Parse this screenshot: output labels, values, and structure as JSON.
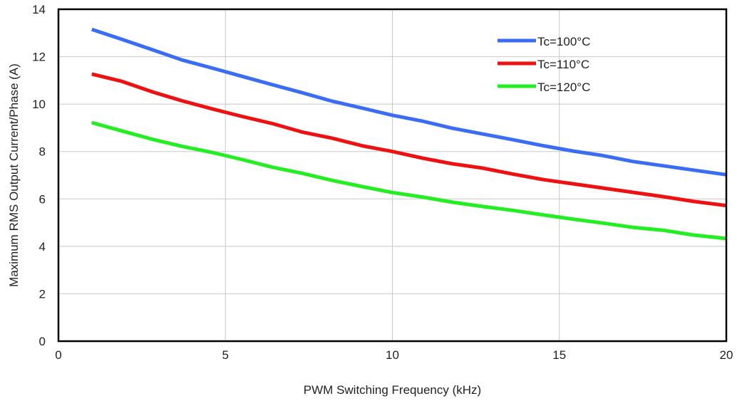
{
  "chart_data": {
    "type": "line",
    "xlabel": "PWM Switching Frequency (kHz)",
    "ylabel": "Maximum RMS Output Current/Phase (A)",
    "xlim": [
      0,
      20
    ],
    "ylim": [
      0,
      14
    ],
    "xticks": [
      "0",
      "5",
      "10",
      "15",
      "20"
    ],
    "yticks": [
      "0",
      "2",
      "4",
      "6",
      "8",
      "10",
      "12",
      "14"
    ],
    "grid": true,
    "legend_position": "top-right",
    "x": [
      1,
      1.9,
      2.8,
      3.7,
      4.6,
      5.5,
      6.4,
      7.3,
      8.2,
      9.1,
      10,
      10.9,
      11.8,
      12.7,
      13.6,
      14.5,
      15.4,
      16.3,
      17.2,
      18.1,
      19,
      20
    ],
    "series": [
      {
        "name": "Tc=100°C",
        "color": "#3a6cf4",
        "values": [
          13.15,
          12.73,
          12.3,
          11.86,
          11.52,
          11.17,
          10.82,
          10.48,
          10.12,
          9.83,
          9.53,
          9.28,
          8.98,
          8.74,
          8.5,
          8.25,
          8.02,
          7.83,
          7.58,
          7.4,
          7.22,
          7.02
        ]
      },
      {
        "name": "Tc=110°C",
        "color": "#ee1111",
        "values": [
          11.27,
          10.96,
          10.52,
          10.14,
          9.8,
          9.48,
          9.18,
          8.82,
          8.56,
          8.24,
          8.0,
          7.72,
          7.48,
          7.3,
          7.05,
          6.82,
          6.64,
          6.46,
          6.28,
          6.1,
          5.9,
          5.72
        ]
      },
      {
        "name": "Tc=120°C",
        "color": "#22ee22",
        "values": [
          9.22,
          8.87,
          8.52,
          8.22,
          7.96,
          7.66,
          7.34,
          7.08,
          6.78,
          6.52,
          6.27,
          6.08,
          5.86,
          5.68,
          5.52,
          5.33,
          5.15,
          4.98,
          4.8,
          4.68,
          4.48,
          4.33
        ]
      }
    ]
  }
}
